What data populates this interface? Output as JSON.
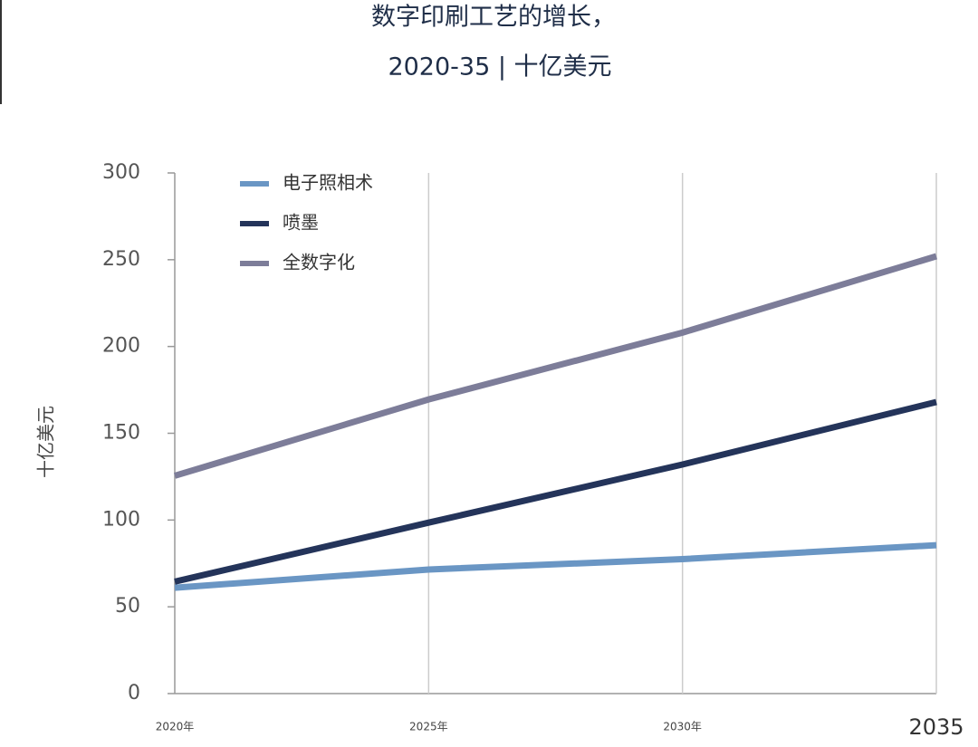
{
  "chart_data": {
    "type": "line",
    "title": "数字印刷工艺的增长，",
    "subtitle": "2020-35 | 十亿美元",
    "y_label": "十亿美元",
    "categories": [
      "2020年",
      "2025年",
      "2030年",
      "2035"
    ],
    "series": [
      {
        "name": "电子照相术",
        "color": "#6a96c4",
        "values": [
          61,
          71.5,
          77.5,
          85.5
        ]
      },
      {
        "name": "喷墨",
        "color": "#24345a",
        "values": [
          64.5,
          98.5,
          132,
          168
        ]
      },
      {
        "name": "全数字化",
        "color": "#7d7d99",
        "values": [
          125.5,
          169.5,
          208,
          252
        ]
      }
    ],
    "ylim": [
      0,
      300
    ],
    "yticks": [
      0,
      50,
      100,
      150,
      200,
      250,
      300
    ]
  }
}
